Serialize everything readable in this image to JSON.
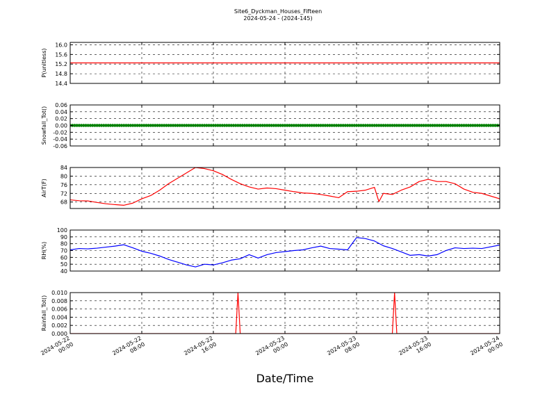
{
  "chart_data": {
    "title": "Site6_Dyckman_Houses_Fifteen",
    "subtitle": "2024-05-24 - (2024-145)",
    "xlabel": "Date/Time",
    "x_range": [
      "2024-05-22 00:00",
      "2024-05-24 00:00"
    ],
    "x_ticks": [
      {
        "line1": "2024-05-22",
        "line2": "00:00"
      },
      {
        "line1": "2024-05-22",
        "line2": "08:00"
      },
      {
        "line1": "2024-05-22",
        "line2": "16:00"
      },
      {
        "line1": "2024-05-23",
        "line2": "00:00"
      },
      {
        "line1": "2024-05-23",
        "line2": "08:00"
      },
      {
        "line1": "2024-05-23",
        "line2": "16:00"
      },
      {
        "line1": "2024-05-24",
        "line2": "00:00"
      }
    ],
    "grid": true,
    "panels": [
      {
        "type": "line",
        "ylabel": "P(unitless)",
        "ylim": [
          14.4,
          16.1
        ],
        "yticks": [
          "16.0",
          "15.6",
          "15.2",
          "14.8",
          "14.4"
        ],
        "color": "#ff0000",
        "series": [
          {
            "x": [
              "2024-05-22 00:00",
              "2024-05-24 00:00"
            ],
            "y": [
              15.25,
              15.25
            ]
          }
        ]
      },
      {
        "type": "scatter",
        "ylabel": "Snowfall_Tot()",
        "ylim": [
          -0.06,
          0.06
        ],
        "yticks": [
          "0.06",
          "0.04",
          "0.02",
          "0.00",
          "-0.02",
          "-0.04",
          "-0.06"
        ],
        "color": "#008000",
        "constant_value": 0.0,
        "note_interval_minutes": 15
      },
      {
        "type": "line",
        "ylabel": "AirT(F)",
        "ylim": [
          65,
          84
        ],
        "yticks": [
          "84",
          "80",
          "76",
          "72",
          "68"
        ],
        "color": "#ff0000",
        "series": [
          {
            "x": [
              "2024-05-22 00:00",
              "2024-05-22 01:00",
              "2024-05-22 02:00",
              "2024-05-22 03:00",
              "2024-05-22 04:00",
              "2024-05-22 05:00",
              "2024-05-22 06:00",
              "2024-05-22 07:00",
              "2024-05-22 08:00",
              "2024-05-22 09:00",
              "2024-05-22 10:00",
              "2024-05-22 11:00",
              "2024-05-22 12:00",
              "2024-05-22 13:00",
              "2024-05-22 14:00",
              "2024-05-22 15:00",
              "2024-05-22 16:00",
              "2024-05-22 17:00",
              "2024-05-22 18:00",
              "2024-05-22 19:00",
              "2024-05-22 20:00",
              "2024-05-22 21:00",
              "2024-05-22 22:00",
              "2024-05-22 23:00",
              "2024-05-23 00:00",
              "2024-05-23 01:00",
              "2024-05-23 02:00",
              "2024-05-23 03:00",
              "2024-05-23 04:00",
              "2024-05-23 05:00",
              "2024-05-23 06:00",
              "2024-05-23 07:00",
              "2024-05-23 08:00",
              "2024-05-23 09:00",
              "2024-05-23 10:00",
              "2024-05-23 10:30",
              "2024-05-23 11:00",
              "2024-05-23 12:00",
              "2024-05-23 13:00",
              "2024-05-23 14:00",
              "2024-05-23 15:00",
              "2024-05-23 16:00",
              "2024-05-23 17:00",
              "2024-05-23 18:00",
              "2024-05-23 19:00",
              "2024-05-23 20:00",
              "2024-05-23 21:00",
              "2024-05-23 22:00",
              "2024-05-24 00:00"
            ],
            "y": [
              69,
              68.6,
              68.5,
              67.8,
              67.2,
              66.8,
              66.5,
              67.5,
              69.5,
              71,
              73.5,
              76.5,
              79,
              81.5,
              84,
              83.5,
              82.5,
              80.8,
              78.5,
              76.5,
              75,
              74,
              74.5,
              74.2,
              73.5,
              72.8,
              72.2,
              72,
              71.5,
              70.8,
              70,
              72.8,
              73,
              73.5,
              74.8,
              68.2,
              72,
              71.5,
              73.5,
              75,
              77.5,
              78.5,
              77.5,
              77.5,
              76.5,
              74,
              72.5,
              72,
              69.5
            ]
          }
        ]
      },
      {
        "type": "line",
        "ylabel": "RH(%)",
        "ylim": [
          40,
          100
        ],
        "yticks": [
          "100",
          "90",
          "80",
          "70",
          "60",
          "50",
          "40"
        ],
        "color": "#0000ff",
        "series": [
          {
            "x": [
              "2024-05-22 00:00",
              "2024-05-22 01:00",
              "2024-05-22 02:00",
              "2024-05-22 03:00",
              "2024-05-22 04:00",
              "2024-05-22 05:00",
              "2024-05-22 06:00",
              "2024-05-22 07:00",
              "2024-05-22 08:00",
              "2024-05-22 09:00",
              "2024-05-22 10:00",
              "2024-05-22 11:00",
              "2024-05-22 12:00",
              "2024-05-22 13:00",
              "2024-05-22 14:00",
              "2024-05-22 15:00",
              "2024-05-22 16:00",
              "2024-05-22 17:00",
              "2024-05-22 18:00",
              "2024-05-22 19:00",
              "2024-05-22 20:00",
              "2024-05-22 21:00",
              "2024-05-22 22:00",
              "2024-05-22 23:00",
              "2024-05-23 00:00",
              "2024-05-23 01:00",
              "2024-05-23 02:00",
              "2024-05-23 03:00",
              "2024-05-23 04:00",
              "2024-05-23 05:00",
              "2024-05-23 06:00",
              "2024-05-23 07:00",
              "2024-05-23 08:00",
              "2024-05-23 09:00",
              "2024-05-23 10:00",
              "2024-05-23 11:00",
              "2024-05-23 12:00",
              "2024-05-23 13:00",
              "2024-05-23 14:00",
              "2024-05-23 15:00",
              "2024-05-23 16:00",
              "2024-05-23 17:00",
              "2024-05-23 18:00",
              "2024-05-23 19:00",
              "2024-05-23 20:00",
              "2024-05-23 21:00",
              "2024-05-23 22:00",
              "2024-05-24 00:00"
            ],
            "y": [
              71,
              73,
              72.5,
              73.5,
              75,
              76.5,
              78.5,
              74,
              69,
              66,
              62,
              57,
              53,
              49,
              46,
              50,
              49,
              52,
              56,
              58,
              64,
              59,
              64,
              67,
              68.5,
              70,
              71,
              74,
              76.5,
              73,
              72,
              71,
              89,
              87.5,
              84,
              77,
              73,
              68,
              63,
              64,
              62,
              64,
              70,
              74,
              73,
              73.5,
              73,
              78
            ]
          }
        ]
      },
      {
        "type": "line",
        "ylabel": "Rainfall_Tot()",
        "ylim": [
          0,
          0.01
        ],
        "yticks": [
          "0.010",
          "0.008",
          "0.006",
          "0.004",
          "0.002",
          "0.000"
        ],
        "color": "#ff0000",
        "series": [
          {
            "x": [
              "2024-05-22 00:00",
              "2024-05-22 18:30",
              "2024-05-22 18:45",
              "2024-05-22 19:00",
              "2024-05-23 12:00",
              "2024-05-23 12:15",
              "2024-05-23 12:30",
              "2024-05-24 00:00"
            ],
            "y": [
              0,
              0,
              0.01,
              0,
              0,
              0.01,
              0,
              0
            ]
          }
        ]
      }
    ]
  }
}
